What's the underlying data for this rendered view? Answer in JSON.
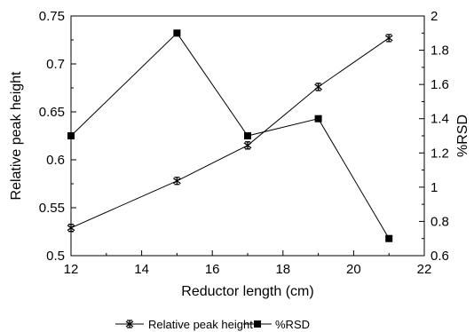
{
  "chart_data": {
    "type": "line",
    "x_axis": {
      "label": "Reductor length (cm)",
      "range": [
        12,
        22
      ],
      "ticks": [
        "12",
        "14",
        "16",
        "18",
        "20",
        "22"
      ]
    },
    "y_axis_left": {
      "label": "Relative peak height",
      "range": [
        0.5,
        0.75
      ],
      "ticks": [
        "0.5",
        "0.55",
        "0.6",
        "0.65",
        "0.7",
        "0.75"
      ]
    },
    "y_axis_right": {
      "label": "%RSD",
      "range": [
        0.6,
        2
      ],
      "ticks": [
        "0.6",
        "0.8",
        "1",
        "1.2",
        "1.4",
        "1.6",
        "1.8",
        "2"
      ]
    },
    "series": [
      {
        "name": "Relative peak height",
        "axis": "left",
        "marker": "error-bar",
        "x": [
          12,
          15,
          17,
          19,
          21
        ],
        "y": [
          0.529,
          0.578,
          0.615,
          0.676,
          0.727
        ]
      },
      {
        "name": "%RSD",
        "axis": "right",
        "marker": "square",
        "x": [
          12,
          15,
          17,
          19,
          21
        ],
        "y": [
          1.3,
          1.9,
          1.3,
          1.4,
          0.7
        ]
      }
    ],
    "grid": false,
    "legend_position": "bottom-center",
    "colors": {
      "line": "#000000",
      "background": "#ffffff"
    }
  }
}
